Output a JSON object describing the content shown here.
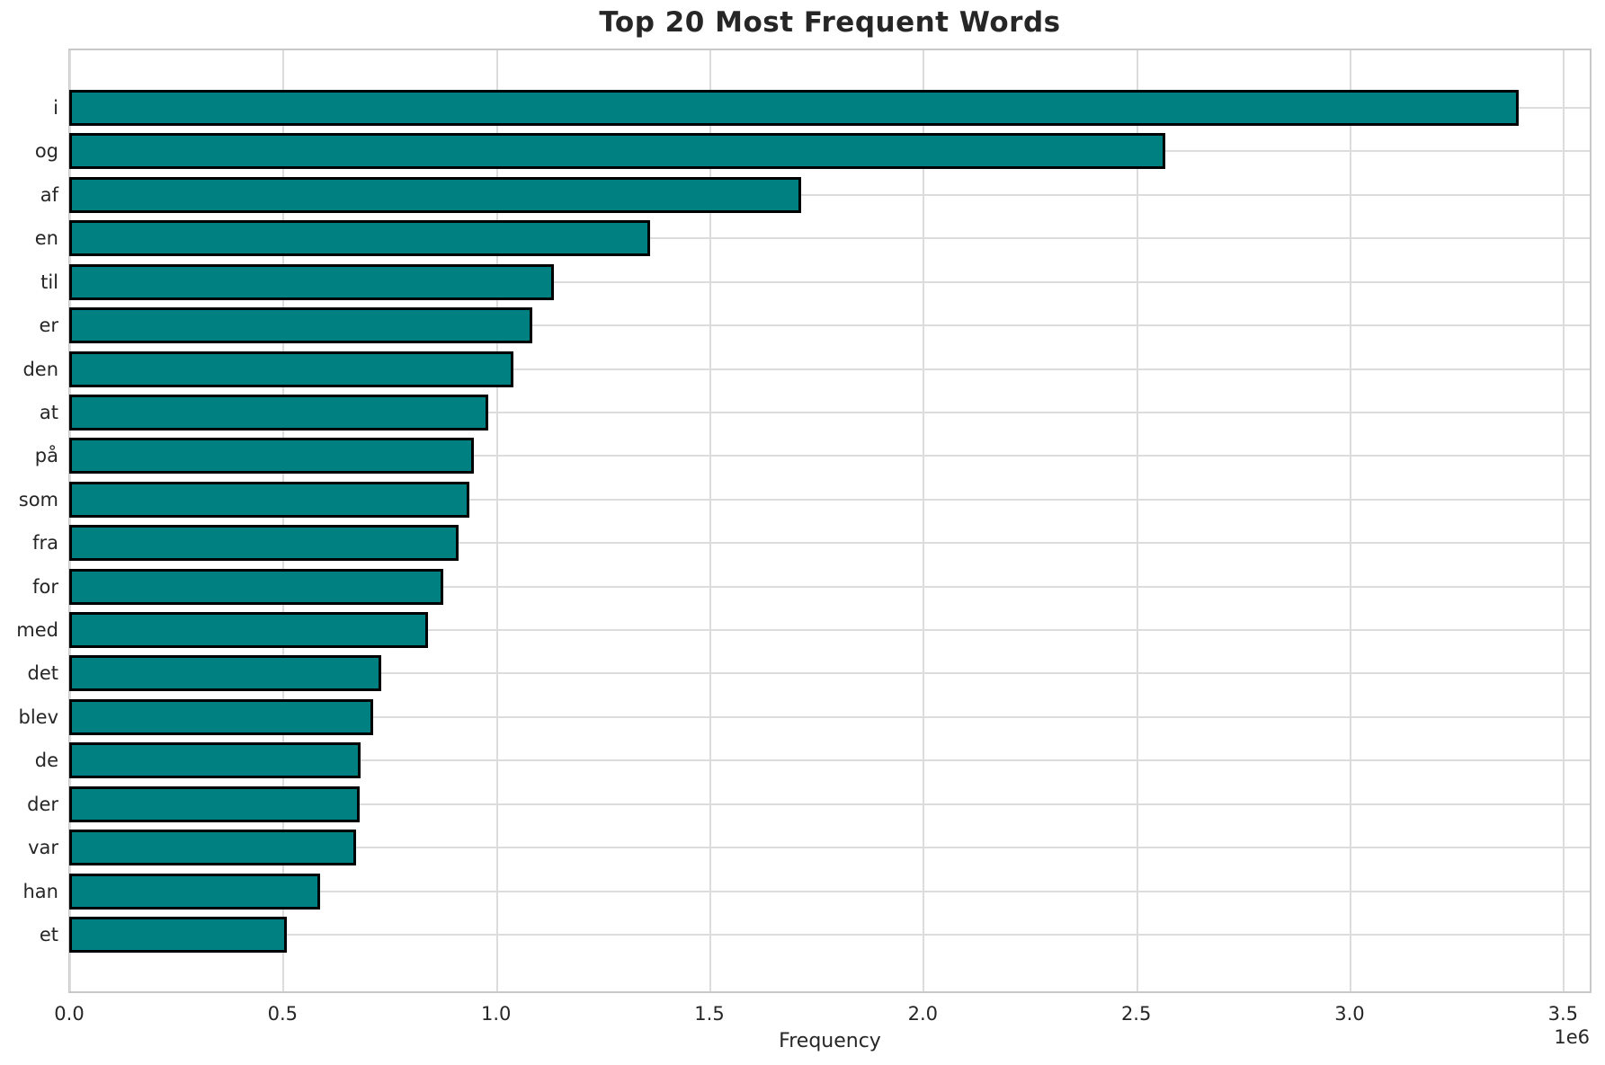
{
  "title": "Top 20 Most Frequent Words",
  "x_axis": {
    "label": "Frequency",
    "offset_label": "1e6",
    "tick_labels": [
      "0.0",
      "0.5",
      "1.0",
      "1.5",
      "2.0",
      "2.5",
      "3.0",
      "3.5"
    ]
  },
  "chart_data": {
    "type": "bar",
    "orientation": "horizontal",
    "title": "Top 20 Most Frequent Words",
    "xlabel": "Frequency",
    "ylabel": "",
    "categories": [
      "i",
      "og",
      "af",
      "en",
      "til",
      "er",
      "den",
      "at",
      "på",
      "som",
      "fra",
      "for",
      "med",
      "det",
      "blev",
      "de",
      "der",
      "var",
      "han",
      "et"
    ],
    "values": [
      3397000,
      2568000,
      1715000,
      1362000,
      1135000,
      1086000,
      1040000,
      981000,
      947000,
      938000,
      912000,
      877000,
      840000,
      730000,
      713000,
      682000,
      680000,
      673000,
      588000,
      510000
    ],
    "xlim": [
      0,
      3567000
    ],
    "x_ticks": [
      0,
      500000,
      1000000,
      1500000,
      2000000,
      2500000,
      3000000,
      3500000
    ],
    "x_scale_factor": 1000000,
    "grid": true,
    "legend": "none",
    "bar_color": "#008080",
    "bar_edge_color": "#000000",
    "grid_color": "#dcdcdc",
    "spine_color": "#c8c8c8",
    "text_color": "#262626"
  }
}
